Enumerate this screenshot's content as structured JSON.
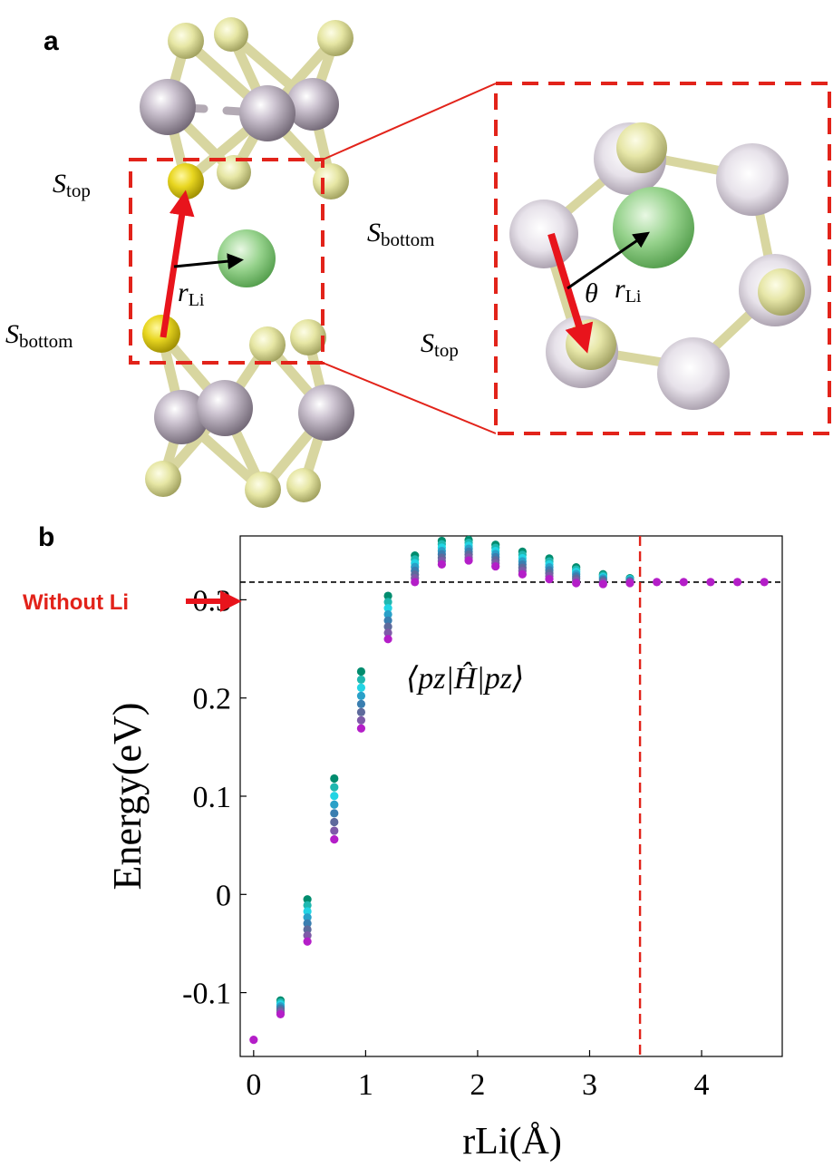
{
  "panel_a": {
    "letter": "a",
    "label_s_top": "S",
    "label_top_sub": "top",
    "label_s_bottom": "S",
    "label_bottom_sub": "bottom",
    "label_r": "r",
    "label_li_sub": "Li",
    "label_theta": "θ",
    "inset_label_s_bottom": "S",
    "inset_label_bottom_sub": "bottom",
    "inset_label_s_top": "S",
    "inset_label_top_sub": "top",
    "inset_label_r": "r",
    "inset_label_li_sub": "Li",
    "colors": {
      "mo_atom": "#b7aebd",
      "s_atom": "#e8e8a0",
      "s_highlight": "#e6d21e",
      "li_atom": "#8fcf86",
      "bond": "#c9c2a0",
      "dashed_box": "#e2231a",
      "arrow_red": "#e8141c",
      "arrow_black": "#000000"
    }
  },
  "panel_b": {
    "letter": "b",
    "without_li_label": "Without Li",
    "annotation": "⟨pz|Ĥ|pz⟩",
    "chart_data": {
      "type": "scatter",
      "xlabel": "rLi(Å)",
      "ylabel": "Energy(eV)",
      "xlim": [
        -0.12,
        4.72
      ],
      "ylim": [
        -0.165,
        0.365
      ],
      "xticks": [
        0,
        1,
        2,
        3,
        4
      ],
      "yticks": [
        -0.1,
        0,
        0.1,
        0.2,
        0.3
      ],
      "ytick_labels": [
        "-0.1",
        "0",
        "0.1",
        "0.2",
        "0.3"
      ],
      "reference_line_y": 0.318,
      "vertical_cutoff_x": 3.45,
      "x": [
        0,
        0.24,
        0.48,
        0.72,
        0.96,
        1.2,
        1.44,
        1.68,
        1.92,
        2.16,
        2.4,
        2.64,
        2.88,
        3.12,
        3.36,
        3.6,
        3.84,
        4.08,
        4.32,
        4.56
      ],
      "ymin": [
        -0.148,
        -0.122,
        -0.048,
        0.056,
        0.169,
        0.26,
        0.318,
        0.336,
        0.34,
        0.334,
        0.326,
        0.321,
        0.317,
        0.316,
        0.317,
        0.317,
        0.317,
        0.317,
        0.317,
        0.317
      ],
      "ymax": [
        -0.148,
        -0.108,
        -0.005,
        0.118,
        0.227,
        0.304,
        0.345,
        0.36,
        0.361,
        0.356,
        0.349,
        0.342,
        0.333,
        0.326,
        0.322,
        0.318,
        0.318,
        0.318,
        0.318,
        0.318
      ],
      "colors": [
        "#008c6e",
        "#1fb8b0",
        "#22d4e4",
        "#2aa0c8",
        "#3a7eb0",
        "#5e6a9c",
        "#7e5aa8",
        "#b41ec8"
      ]
    }
  }
}
